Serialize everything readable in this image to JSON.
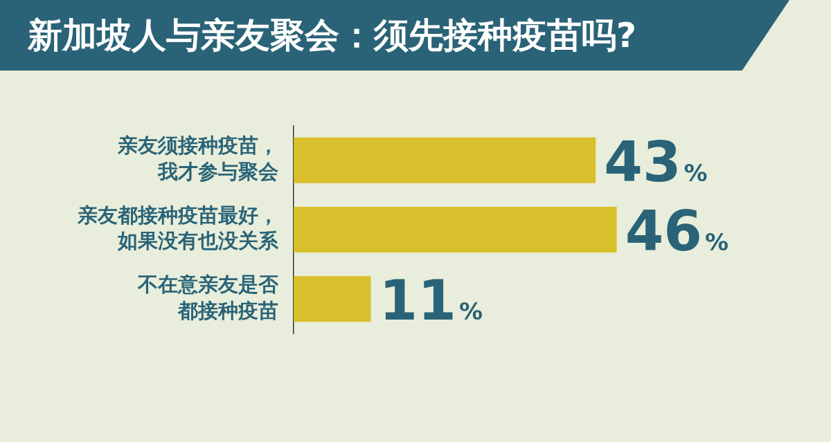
{
  "chart_data": {
    "type": "bar",
    "orientation": "horizontal",
    "title": "新加坡人与亲友聚会：须先接种疫苗吗?",
    "categories": [
      "亲友须接种疫苗，我才参与聚会",
      "亲友都接种疫苗最好，如果没有也没关系",
      "不在意亲友是否都接种疫苗"
    ],
    "values": [
      43,
      46,
      11
    ],
    "value_labels": [
      "43%",
      "46%",
      "11%"
    ],
    "color": "#d9bf2b",
    "grid": false,
    "legend": false
  }
}
